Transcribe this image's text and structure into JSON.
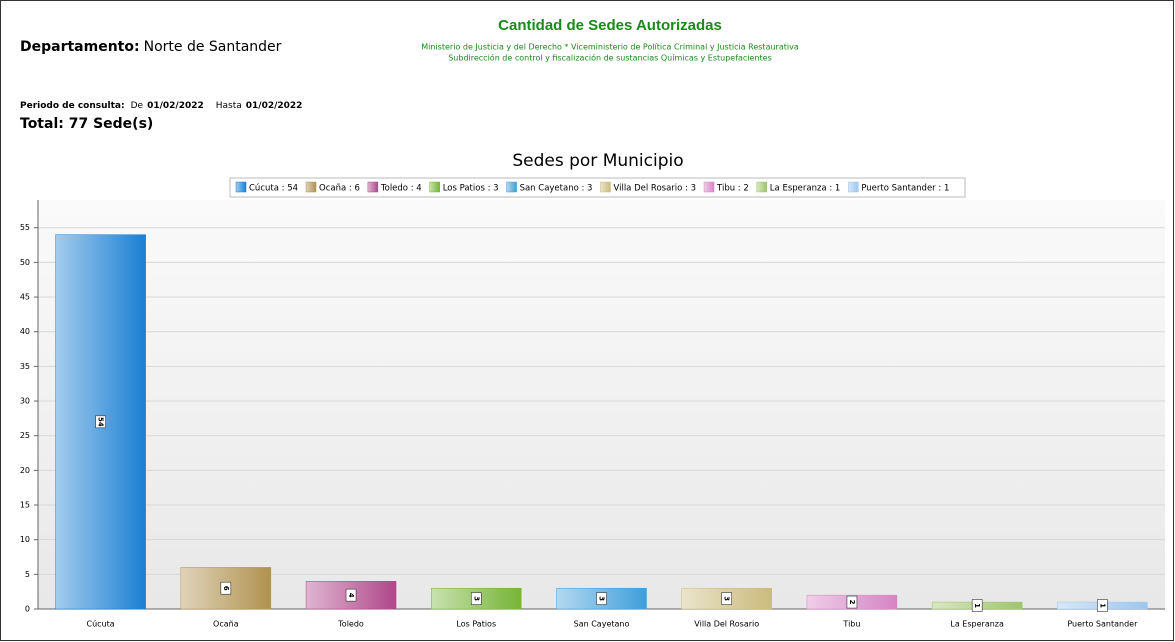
{
  "header": {
    "departamento_label": "Departamento:",
    "departamento": "Norte de Santander",
    "title": "Cantidad de Sedes Autorizadas",
    "subtitle_lines": [
      "Ministerio de Justicia y del Derecho * Viceministerio de Política Criminal y Justicia Restaurativa",
      "Subdirección de control y fiscalización de sustancias Químicas y Estupefacientes"
    ],
    "periodo_label": "Periodo de consulta:",
    "de_label": "De",
    "de": "01/02/2022",
    "hasta_label": "Hasta",
    "hasta": "01/02/2022",
    "total": "Total: 77 Sede(s)"
  },
  "chart_data": {
    "type": "bar",
    "title": "Sedes por Municipio",
    "categories": [
      "Cúcuta",
      "Ocaña",
      "Toledo",
      "Los Patios",
      "San Cayetano",
      "Villa Del Rosario",
      "Tibu",
      "La Esperanza",
      "Puerto Santander"
    ],
    "values": [
      54,
      6,
      4,
      3,
      3,
      3,
      2,
      1,
      1
    ],
    "colors": [
      "#1a7fd4",
      "#b0924f",
      "#b0478a",
      "#76b536",
      "#3f9edc",
      "#cbbb7c",
      "#d684c4",
      "#9fc46e",
      "#9ec6ee"
    ],
    "legend_labels": [
      "Cúcuta : 54",
      "Ocaña : 6",
      "Toledo : 4",
      "Los Patios : 3",
      "San Cayetano : 3",
      "Villa Del Rosario : 3",
      "Tibu : 2",
      "La Esperanza : 1",
      "Puerto Santander : 1"
    ],
    "ylim": [
      0,
      59
    ],
    "yticks": [
      0,
      5,
      10,
      15,
      20,
      25,
      30,
      35,
      40,
      45,
      50,
      55
    ],
    "grid": true
  }
}
